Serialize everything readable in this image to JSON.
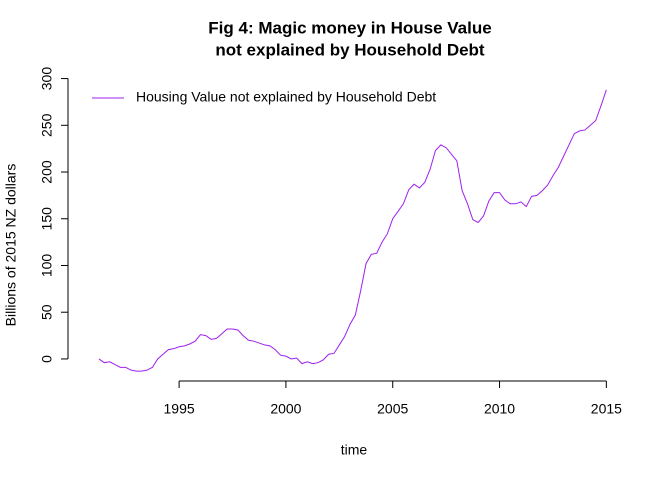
{
  "chart_data": {
    "type": "line",
    "title": [
      "Fig 4: Magic money in House Value",
      "not explained by Household Debt"
    ],
    "x_label": "time",
    "y_label": "Billions of 2015 NZ dollars",
    "legend_position": "top-left",
    "x": [
      1991.25,
      1991.5,
      1991.75,
      1992,
      1992.25,
      1992.5,
      1992.75,
      1993,
      1993.25,
      1993.5,
      1993.75,
      1994,
      1994.25,
      1994.5,
      1994.75,
      1995,
      1995.25,
      1995.5,
      1995.75,
      1996,
      1996.25,
      1996.5,
      1996.75,
      1997,
      1997.25,
      1997.5,
      1997.75,
      1998,
      1998.25,
      1998.5,
      1998.75,
      1999,
      1999.25,
      1999.5,
      1999.75,
      2000,
      2000.25,
      2000.5,
      2000.75,
      2001,
      2001.25,
      2001.5,
      2001.75,
      2002,
      2002.25,
      2002.5,
      2002.75,
      2003,
      2003.25,
      2003.5,
      2003.75,
      2004,
      2004.25,
      2004.5,
      2004.75,
      2005,
      2005.25,
      2005.5,
      2005.75,
      2006,
      2006.25,
      2006.5,
      2006.75,
      2007,
      2007.25,
      2007.5,
      2007.75,
      2008,
      2008.25,
      2008.5,
      2008.75,
      2009,
      2009.25,
      2009.5,
      2009.75,
      2010,
      2010.25,
      2010.5,
      2010.75,
      2011,
      2011.25,
      2011.5,
      2011.75,
      2012,
      2012.25,
      2012.5,
      2012.75,
      2013,
      2013.25,
      2013.5,
      2013.75,
      2014,
      2014.25,
      2014.5,
      2014.75,
      2015
    ],
    "series": [
      {
        "name": "Housing Value not explained by Household Debt",
        "color": "#a020f0",
        "values": [
          0,
          -4,
          -3,
          -6,
          -9,
          -9,
          -12,
          -13,
          -13,
          -12,
          -9,
          0,
          5,
          10,
          11,
          13,
          14,
          16,
          19,
          26,
          25,
          21,
          22,
          27,
          32,
          32,
          31,
          25,
          20,
          19,
          17,
          15,
          14,
          10,
          4,
          3,
          0,
          1,
          -5,
          -3,
          -5,
          -4,
          -1,
          5,
          6,
          15,
          24,
          37,
          47,
          73,
          102,
          112,
          113,
          125,
          134,
          150,
          158,
          166,
          181,
          187,
          183,
          189,
          203,
          223,
          229,
          226,
          219,
          212,
          180,
          166,
          149,
          146,
          153,
          169,
          178,
          178,
          170,
          166,
          166,
          168,
          163,
          174,
          175,
          180,
          186,
          196,
          205,
          217,
          229,
          241,
          244,
          245,
          250,
          255,
          271,
          288
        ]
      }
    ],
    "xlim": [
      1989.8,
      2016.2
    ],
    "xticks": [
      1995,
      2000,
      2005,
      2010,
      2015
    ],
    "ylim": [
      -23.6,
      322
    ],
    "yticks": [
      0,
      50,
      100,
      150,
      200,
      250,
      300
    ]
  }
}
